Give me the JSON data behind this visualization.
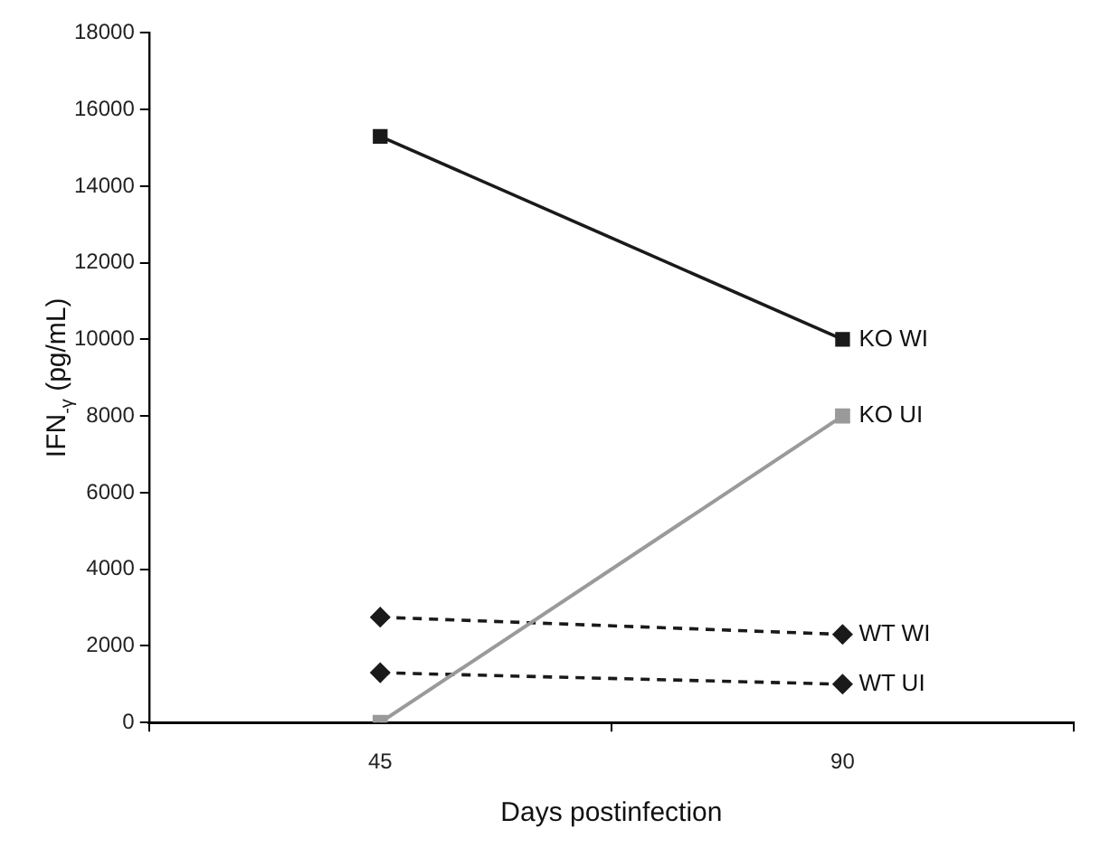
{
  "chart_data": {
    "type": "line",
    "xlabel": "Days postinfection",
    "ylabel": "IFN$_{-γ}$ (pg/mL)",
    "categories": [
      "45",
      "90"
    ],
    "ylim": [
      0,
      18000
    ],
    "yticks": [
      0,
      2000,
      4000,
      6000,
      8000,
      10000,
      12000,
      14000,
      16000,
      18000
    ],
    "grid": false,
    "legend": false,
    "series": [
      {
        "name": "KO WI",
        "color": "#1a1a1a",
        "values": [
          15300,
          10000
        ],
        "marker": "square",
        "line_style": "solid"
      },
      {
        "name": "KO UI",
        "color": "#9a9a9a",
        "values": [
          0,
          8000
        ],
        "marker": "square",
        "line_style": "solid"
      },
      {
        "name": "WT WI",
        "color": "#1a1a1a",
        "values": [
          2750,
          2300
        ],
        "marker": "diamond",
        "line_style": "dashed"
      },
      {
        "name": "WT UI",
        "color": "#1a1a1a",
        "values": [
          1300,
          1000
        ],
        "marker": "diamond",
        "line_style": "dashed"
      }
    ]
  }
}
